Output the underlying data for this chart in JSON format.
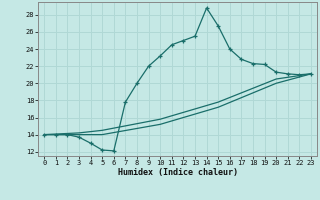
{
  "xlabel": "Humidex (Indice chaleur)",
  "bg_color": "#c5e8e5",
  "line_color": "#1a6e6a",
  "grid_color": "#b0d8d5",
  "xlim": [
    -0.5,
    23.5
  ],
  "ylim": [
    11.5,
    29.5
  ],
  "xticks": [
    0,
    1,
    2,
    3,
    4,
    5,
    6,
    7,
    8,
    9,
    10,
    11,
    12,
    13,
    14,
    15,
    16,
    17,
    18,
    19,
    20,
    21,
    22,
    23
  ],
  "yticks": [
    12,
    14,
    16,
    18,
    20,
    22,
    24,
    26,
    28
  ],
  "line1_x": [
    0,
    1,
    2,
    3,
    4,
    5,
    6,
    7,
    8,
    9,
    10,
    11,
    12,
    13,
    14,
    15,
    16,
    17,
    18,
    19,
    20,
    21,
    22,
    23
  ],
  "line1_y": [
    14.0,
    14.0,
    14.0,
    13.7,
    13.0,
    12.2,
    12.1,
    17.8,
    20.0,
    22.0,
    23.2,
    24.5,
    25.0,
    25.5,
    28.8,
    26.7,
    24.0,
    22.8,
    22.3,
    22.2,
    21.3,
    21.1,
    21.0,
    21.1
  ],
  "line2_x": [
    0,
    3,
    5,
    10,
    15,
    20,
    23
  ],
  "line2_y": [
    14.0,
    14.0,
    14.0,
    15.2,
    17.2,
    20.0,
    21.1
  ],
  "line3_x": [
    0,
    3,
    5,
    10,
    15,
    20,
    23
  ],
  "line3_y": [
    14.0,
    14.2,
    14.5,
    15.8,
    17.8,
    20.5,
    21.1
  ],
  "marker": "+"
}
